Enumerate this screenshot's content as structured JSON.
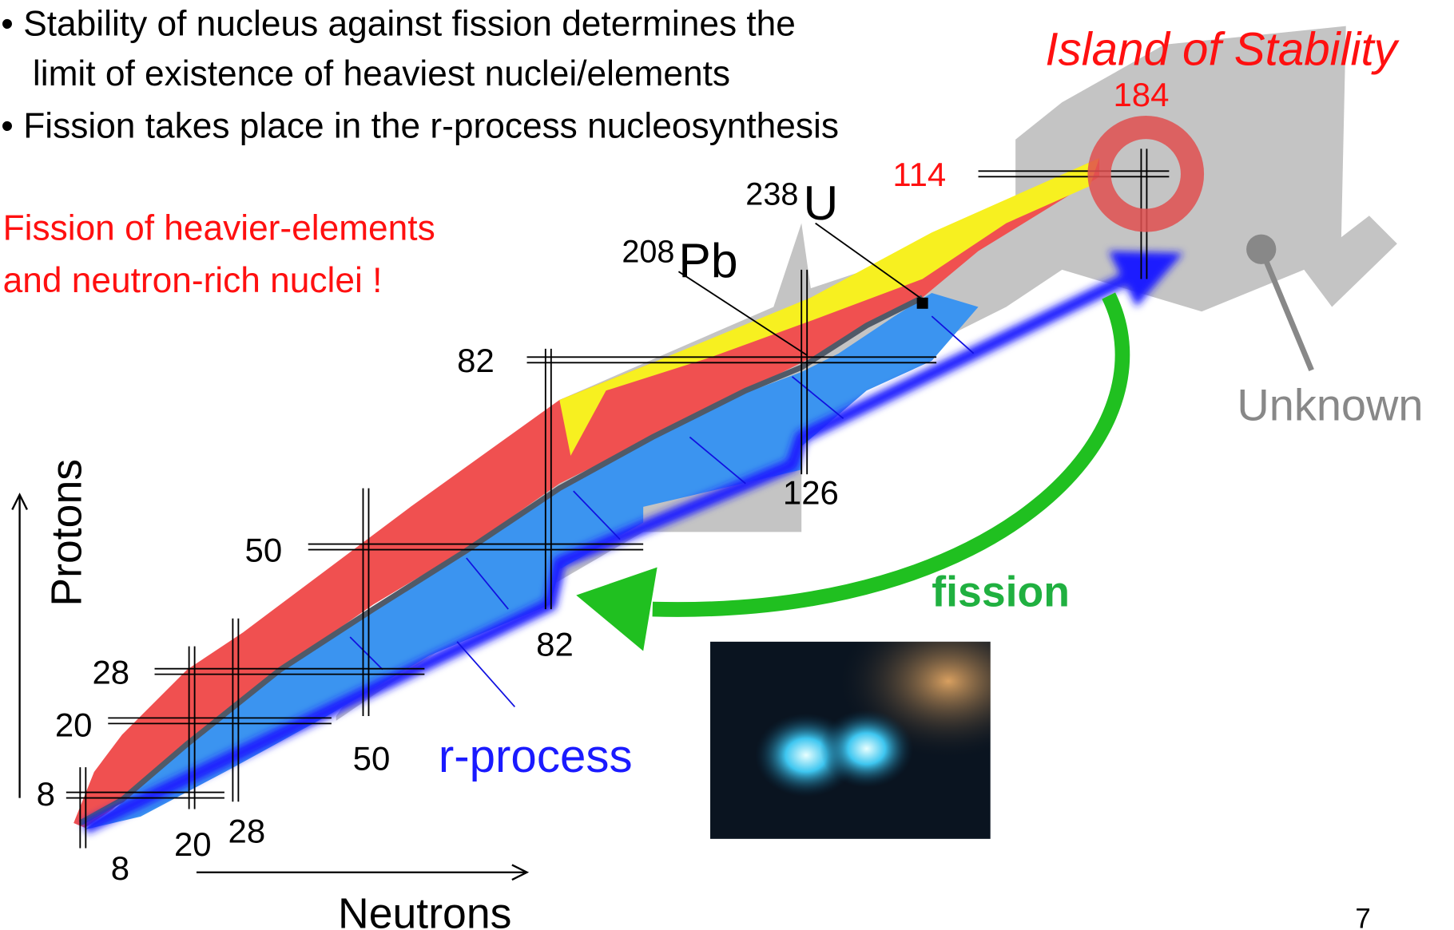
{
  "bullets": [
    [
      "Stability of nucleus against fission determines the",
      "limit of existence of heaviest nuclei/elements"
    ],
    [
      "Fission takes place in the r-process nucleosynthesis"
    ]
  ],
  "note": [
    "Fission of heavier-elements",
    "and neutron-rich nuclei !"
  ],
  "island": {
    "title": "Island of Stability",
    "neutrons": "184",
    "protons": "114"
  },
  "proton_magic": [
    "8",
    "20",
    "28",
    "50",
    "82"
  ],
  "neutron_magic": [
    "8",
    "20",
    "28",
    "50",
    "82",
    "126"
  ],
  "nuclei": [
    {
      "mass": "238",
      "symbol": "U"
    },
    {
      "mass": "208",
      "symbol": "Pb"
    }
  ],
  "labels": {
    "unknown": "Unknown",
    "fission": "fission",
    "r_process": "r-process",
    "protons": "Protons",
    "neutrons": "Neutrons"
  },
  "page_number": "7"
}
